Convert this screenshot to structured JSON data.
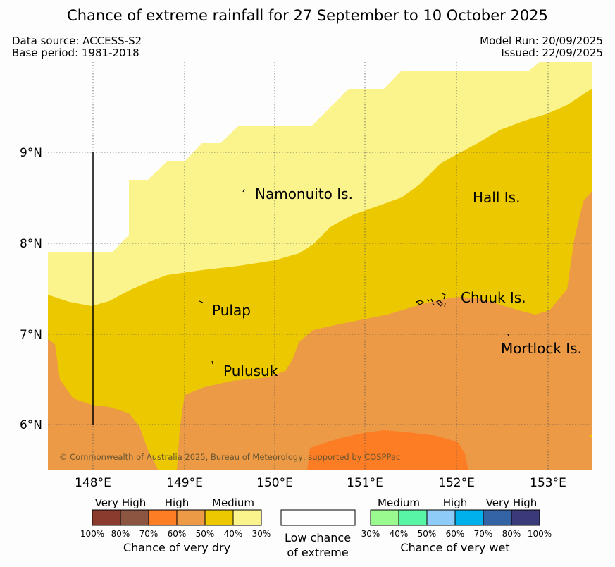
{
  "title": "Chance of extreme rainfall for 27 September to 10 October 2025",
  "meta": {
    "data_source": "Data source: ACCESS-S2",
    "base_period": "Base period: 1981-2018",
    "model_run": "Model Run: 20/09/2025",
    "issued": "Issued: 22/09/2025"
  },
  "map": {
    "lon_ticks": [
      "148°E",
      "149°E",
      "150°E",
      "151°E",
      "152°E",
      "153°E"
    ],
    "lat_ticks": [
      "9°N",
      "8°N",
      "7°N",
      "6°N"
    ],
    "places": [
      {
        "name": "Namonuito Is."
      },
      {
        "name": "Hall Is."
      },
      {
        "name": "Pulap"
      },
      {
        "name": "Chuuk Is."
      },
      {
        "name": "Mortlock Is."
      },
      {
        "name": "Pulusuk"
      }
    ],
    "copyright": "© Commonwealth of Australia 2025, Bureau of Meteorology, supported by COSPPac",
    "colors": {
      "dry_30_40": "#fbf38c",
      "dry_40_50": "#ecc800",
      "dry_50_60": "#ec9a46",
      "dry_60_70": "#fd7d25"
    }
  },
  "legend": {
    "dry": {
      "categories": [
        "Very High",
        "High",
        "Medium"
      ],
      "ticks": [
        "100%",
        "80%",
        "70%",
        "60%",
        "50%",
        "40%",
        "30%"
      ],
      "colors": [
        "#8b3a2e",
        "#8c5542",
        "#fd7d25",
        "#ec9a46",
        "#ecc800",
        "#fbf38c"
      ],
      "caption": "Chance of very dry"
    },
    "low": {
      "line1": "Low chance",
      "line2": "of extreme"
    },
    "wet": {
      "categories": [
        "Medium",
        "High",
        "Very High"
      ],
      "ticks": [
        "30%",
        "40%",
        "50%",
        "60%",
        "70%",
        "80%",
        "100%"
      ],
      "colors": [
        "#9af98f",
        "#58f5a4",
        "#8ecbf8",
        "#00b0ec",
        "#3464a4",
        "#3b3a78"
      ],
      "caption": "Chance of very wet"
    }
  }
}
